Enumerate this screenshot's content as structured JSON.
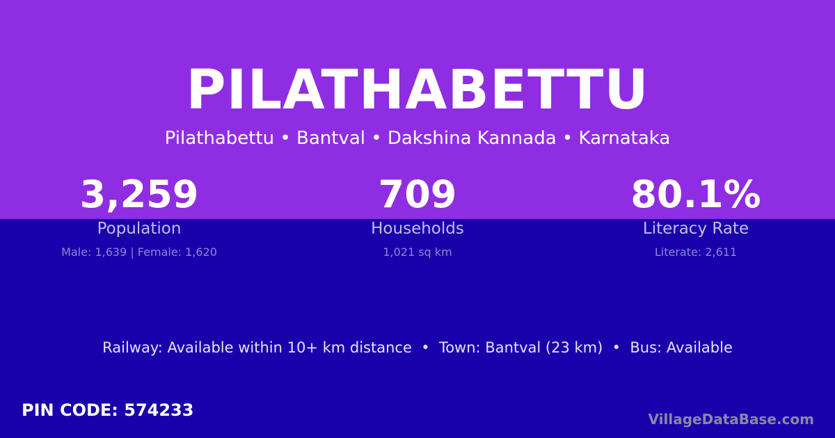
{
  "colors": {
    "top_background": "#8e2de2",
    "bottom_background": "#1a00aa",
    "text": "#ffffff"
  },
  "header": {
    "title": "PILATHABETTU",
    "subtitle": "Pilathabettu • Bantval • Dakshina Kannada • Karnataka"
  },
  "stats": [
    {
      "value": "3,259",
      "label": "Population",
      "detail": "Male: 1,639 | Female: 1,620"
    },
    {
      "value": "709",
      "label": "Households",
      "detail": "1,021 sq km"
    },
    {
      "value": "80.1%",
      "label": "Literacy Rate",
      "detail": "Literate: 2,611"
    }
  ],
  "facts": "Railway: Available within 10+ km distance  •  Town: Bantval (23 km)  •  Bus: Available",
  "pin_code": "PIN CODE: 574233",
  "brand": "VillageDataBase.com"
}
